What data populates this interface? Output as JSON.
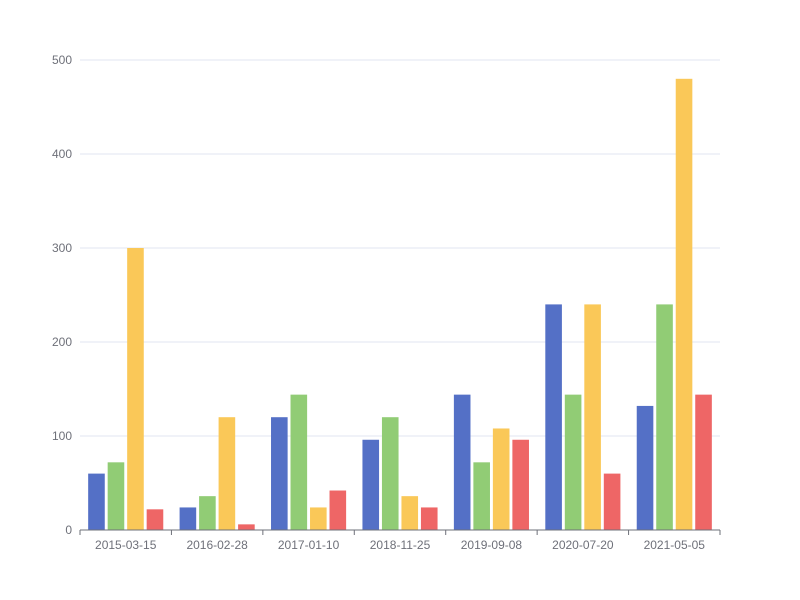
{
  "chart_data": {
    "type": "bar",
    "categories": [
      "2015-03-15",
      "2016-02-28",
      "2017-01-10",
      "2018-11-25",
      "2019-09-08",
      "2020-07-20",
      "2021-05-05"
    ],
    "series": [
      {
        "color": "#5470c6",
        "values": [
          60,
          24,
          120,
          96,
          144,
          240,
          132
        ]
      },
      {
        "color": "#91cc75",
        "values": [
          72,
          36,
          144,
          120,
          72,
          144,
          240
        ]
      },
      {
        "color": "#fac858",
        "values": [
          300,
          120,
          24,
          36,
          108,
          240,
          480
        ]
      },
      {
        "color": "#ee6666",
        "values": [
          22,
          6,
          42,
          24,
          96,
          60,
          144
        ]
      }
    ],
    "ylim": [
      0,
      500
    ],
    "yticks": [
      "0",
      "100",
      "200",
      "300",
      "400",
      "500"
    ],
    "grid": true,
    "title": "",
    "xlabel": "",
    "ylabel": ""
  }
}
